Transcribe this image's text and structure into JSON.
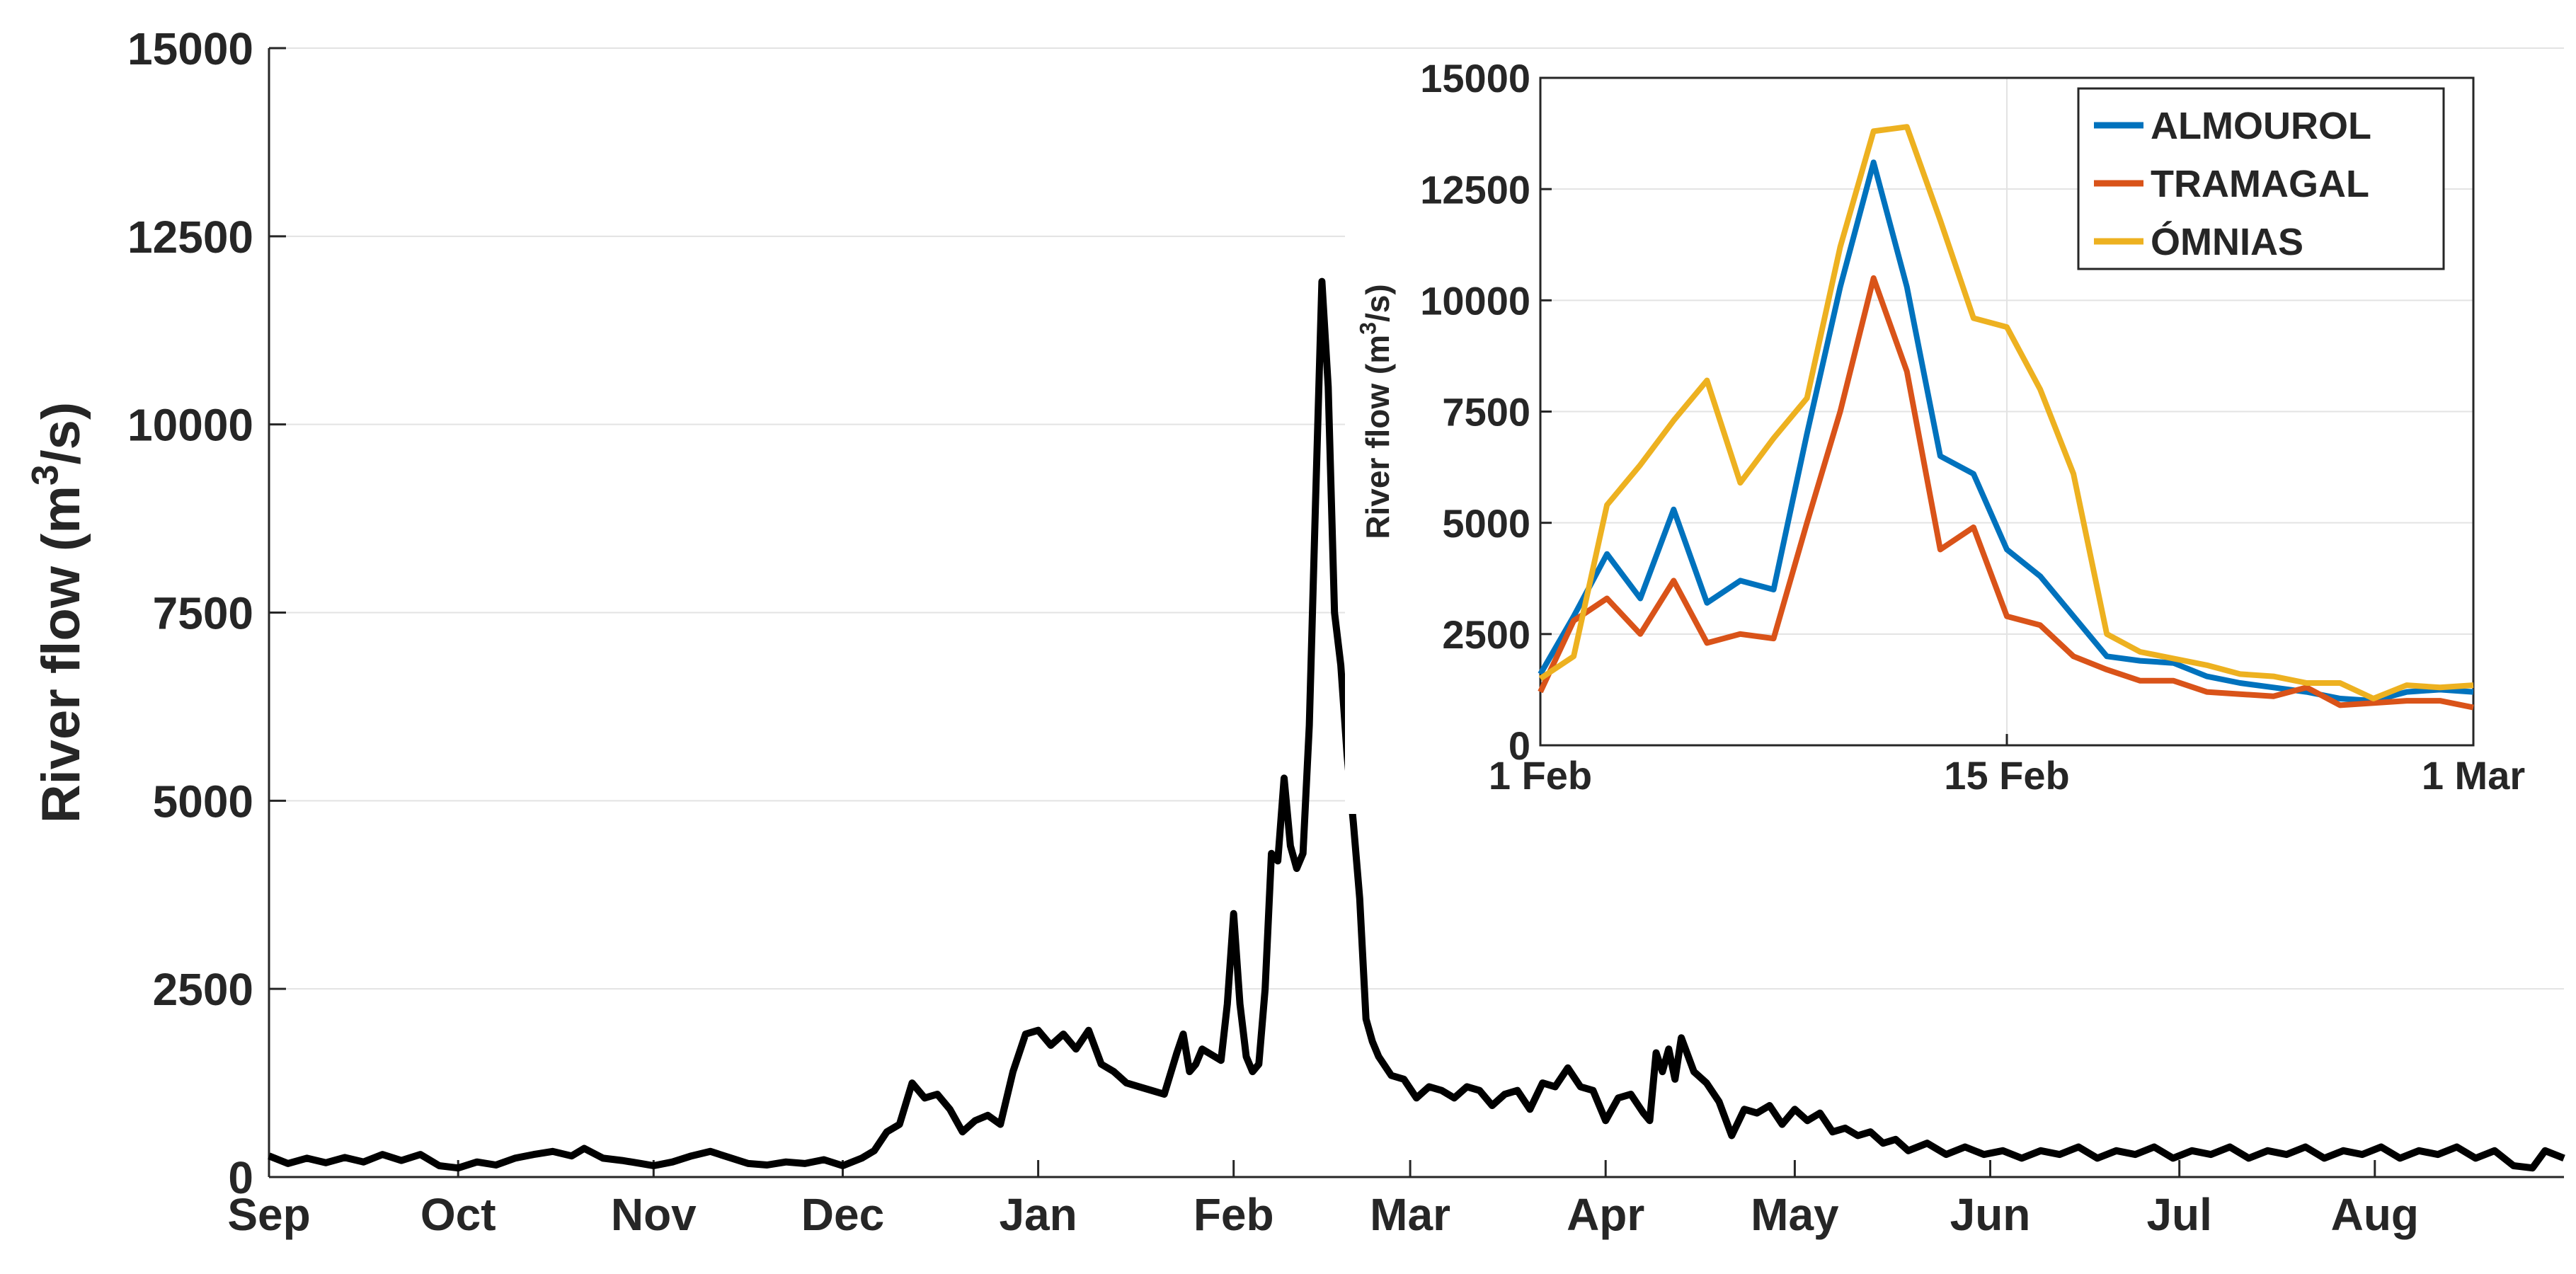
{
  "chart_data": [
    {
      "type": "line",
      "ylabel": "River flow (m",
      "ylabel_sup": "3",
      "ylabel_suffix": "/s)",
      "ylim": [
        0,
        15000
      ],
      "yticks": [
        0,
        2500,
        5000,
        7500,
        10000,
        12500,
        15000
      ],
      "ytick_labels": [
        "0",
        "2500",
        "5000",
        "7500",
        "10000",
        "12500",
        "15000"
      ],
      "xlim_day": [
        0,
        364
      ],
      "xticks": [
        {
          "day": 0,
          "label": "Sep"
        },
        {
          "day": 30,
          "label": "Oct"
        },
        {
          "day": 61,
          "label": "Nov"
        },
        {
          "day": 91,
          "label": "Dec"
        },
        {
          "day": 122,
          "label": "Jan"
        },
        {
          "day": 153,
          "label": "Feb"
        },
        {
          "day": 181,
          "label": "Mar"
        },
        {
          "day": 212,
          "label": "Apr"
        },
        {
          "day": 242,
          "label": "May"
        },
        {
          "day": 273,
          "label": "Jun"
        },
        {
          "day": 303,
          "label": "Jul"
        },
        {
          "day": 334,
          "label": "Aug"
        }
      ],
      "grid": "horizontal",
      "color": "#000000",
      "series": [
        {
          "points": [
            [
              0,
              280
            ],
            [
              3,
              180
            ],
            [
              6,
              250
            ],
            [
              9,
              190
            ],
            [
              12,
              260
            ],
            [
              15,
              200
            ],
            [
              18,
              300
            ],
            [
              21,
              220
            ],
            [
              24,
              300
            ],
            [
              27,
              150
            ],
            [
              30,
              120
            ],
            [
              33,
              200
            ],
            [
              36,
              160
            ],
            [
              39,
              250
            ],
            [
              42,
              300
            ],
            [
              45,
              340
            ],
            [
              48,
              280
            ],
            [
              50,
              380
            ],
            [
              53,
              250
            ],
            [
              56,
              220
            ],
            [
              59,
              180
            ],
            [
              61,
              150
            ],
            [
              64,
              200
            ],
            [
              67,
              280
            ],
            [
              70,
              340
            ],
            [
              73,
              260
            ],
            [
              76,
              180
            ],
            [
              79,
              160
            ],
            [
              82,
              200
            ],
            [
              85,
              180
            ],
            [
              88,
              230
            ],
            [
              91,
              150
            ],
            [
              94,
              250
            ],
            [
              96,
              350
            ],
            [
              98,
              600
            ],
            [
              100,
              700
            ],
            [
              102,
              1250
            ],
            [
              104,
              1050
            ],
            [
              106,
              1100
            ],
            [
              108,
              900
            ],
            [
              110,
              600
            ],
            [
              112,
              750
            ],
            [
              114,
              820
            ],
            [
              116,
              700
            ],
            [
              118,
              1400
            ],
            [
              120,
              1900
            ],
            [
              122,
              1950
            ],
            [
              124,
              1750
            ],
            [
              126,
              1900
            ],
            [
              128,
              1700
            ],
            [
              130,
              1950
            ],
            [
              132,
              1500
            ],
            [
              134,
              1400
            ],
            [
              136,
              1250
            ],
            [
              138,
              1200
            ],
            [
              140,
              1150
            ],
            [
              142,
              1100
            ],
            [
              144,
              1650
            ],
            [
              145,
              1900
            ],
            [
              146,
              1400
            ],
            [
              147,
              1500
            ],
            [
              148,
              1700
            ],
            [
              150,
              1600
            ],
            [
              151,
              1550
            ],
            [
              152,
              2300
            ],
            [
              153,
              3500
            ],
            [
              154,
              2300
            ],
            [
              155,
              1600
            ],
            [
              156,
              1400
            ],
            [
              157,
              1500
            ],
            [
              158,
              2500
            ],
            [
              159,
              4300
            ],
            [
              160,
              4200
            ],
            [
              161,
              5300
            ],
            [
              162,
              4400
            ],
            [
              163,
              4100
            ],
            [
              164,
              4300
            ],
            [
              165,
              6000
            ],
            [
              166,
              9000
            ],
            [
              167,
              11900
            ],
            [
              168,
              10500
            ],
            [
              169,
              7500
            ],
            [
              170,
              6800
            ],
            [
              171,
              5600
            ],
            [
              172,
              4700
            ],
            [
              173,
              3700
            ],
            [
              174,
              2100
            ],
            [
              175,
              1800
            ],
            [
              176,
              1600
            ],
            [
              178,
              1350
            ],
            [
              180,
              1300
            ],
            [
              182,
              1050
            ],
            [
              184,
              1200
            ],
            [
              186,
              1150
            ],
            [
              188,
              1050
            ],
            [
              190,
              1200
            ],
            [
              192,
              1150
            ],
            [
              194,
              950
            ],
            [
              196,
              1100
            ],
            [
              198,
              1150
            ],
            [
              200,
              900
            ],
            [
              202,
              1250
            ],
            [
              204,
              1200
            ],
            [
              206,
              1450
            ],
            [
              208,
              1200
            ],
            [
              210,
              1150
            ],
            [
              212,
              750
            ],
            [
              214,
              1050
            ],
            [
              216,
              1100
            ],
            [
              218,
              850
            ],
            [
              219,
              750
            ],
            [
              220,
              1650
            ],
            [
              221,
              1400
            ],
            [
              222,
              1700
            ],
            [
              223,
              1300
            ],
            [
              224,
              1850
            ],
            [
              226,
              1400
            ],
            [
              228,
              1250
            ],
            [
              230,
              1000
            ],
            [
              232,
              550
            ],
            [
              234,
              900
            ],
            [
              236,
              850
            ],
            [
              238,
              950
            ],
            [
              240,
              700
            ],
            [
              242,
              900
            ],
            [
              244,
              750
            ],
            [
              246,
              850
            ],
            [
              248,
              600
            ],
            [
              250,
              650
            ],
            [
              252,
              550
            ],
            [
              254,
              600
            ],
            [
              256,
              450
            ],
            [
              258,
              500
            ],
            [
              260,
              350
            ],
            [
              263,
              450
            ],
            [
              266,
              300
            ],
            [
              269,
              400
            ],
            [
              272,
              300
            ],
            [
              275,
              350
            ],
            [
              278,
              250
            ],
            [
              281,
              350
            ],
            [
              284,
              300
            ],
            [
              287,
              400
            ],
            [
              290,
              250
            ],
            [
              293,
              350
            ],
            [
              296,
              300
            ],
            [
              299,
              400
            ],
            [
              302,
              250
            ],
            [
              305,
              350
            ],
            [
              308,
              300
            ],
            [
              311,
              400
            ],
            [
              314,
              250
            ],
            [
              317,
              350
            ],
            [
              320,
              300
            ],
            [
              323,
              400
            ],
            [
              326,
              250
            ],
            [
              329,
              350
            ],
            [
              332,
              300
            ],
            [
              335,
              400
            ],
            [
              338,
              250
            ],
            [
              341,
              350
            ],
            [
              344,
              300
            ],
            [
              347,
              400
            ],
            [
              350,
              250
            ],
            [
              353,
              350
            ],
            [
              356,
              150
            ],
            [
              359,
              120
            ],
            [
              361,
              350
            ],
            [
              364,
              250
            ]
          ]
        }
      ]
    },
    {
      "type": "line",
      "ylabel": "River flow (m",
      "ylabel_sup": "3",
      "ylabel_suffix": "/s)",
      "ylim": [
        0,
        15000
      ],
      "yticks": [
        0,
        2500,
        5000,
        7500,
        10000,
        12500,
        15000
      ],
      "ytick_labels": [
        "0",
        "2500",
        "5000",
        "7500",
        "10000",
        "12500",
        "15000"
      ],
      "xlim_day": [
        0,
        28
      ],
      "xticks": [
        {
          "day": 0,
          "label": "1 Feb"
        },
        {
          "day": 14,
          "label": "15 Feb"
        },
        {
          "day": 28,
          "label": "1 Mar"
        }
      ],
      "grid": "both",
      "legend": "top-right",
      "series": [
        {
          "name": "ALMOUROL",
          "color": "#0072BD",
          "values": [
            1600,
            2900,
            4300,
            3300,
            5300,
            3200,
            3700,
            3500,
            7000,
            10300,
            13100,
            10300,
            6500,
            6100,
            4400,
            3800,
            2900,
            2000,
            1900,
            1850,
            1550,
            1400,
            1300,
            1200,
            1050,
            1000,
            1200,
            1250,
            1200
          ]
        },
        {
          "name": "TRAMAGAL",
          "color": "#D95319",
          "values": [
            1200,
            2800,
            3300,
            2500,
            3700,
            2300,
            2500,
            2400,
            5000,
            7500,
            10500,
            8400,
            4400,
            4900,
            2900,
            2700,
            2000,
            1700,
            1450,
            1450,
            1200,
            1150,
            1100,
            1300,
            900,
            950,
            1000,
            1000,
            850
          ]
        },
        {
          "name": "ÓMNIAS",
          "color": "#EDB120",
          "values": [
            1500,
            2000,
            5400,
            6300,
            7300,
            8200,
            5900,
            6900,
            7800,
            11200,
            13800,
            13900,
            11800,
            9600,
            9400,
            8000,
            6100,
            2500,
            2100,
            1950,
            1800,
            1600,
            1550,
            1400,
            1400,
            1050,
            1350,
            1300,
            1350
          ]
        }
      ]
    }
  ]
}
